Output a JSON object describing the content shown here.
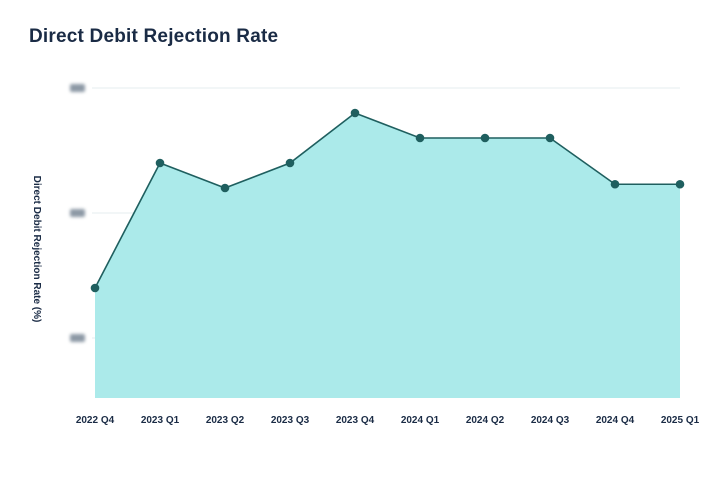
{
  "chart_data": {
    "type": "area",
    "title": "Direct Debit Rejection Rate",
    "xlabel": "",
    "ylabel": "Direct Debit  Rejection Rate (%)",
    "categories": [
      "2022 Q4",
      "2023 Q1",
      "2023 Q2",
      "2023 Q3",
      "2023 Q4",
      "2024 Q1",
      "2024 Q2",
      "2024 Q3",
      "2024 Q4",
      "2025 Q1"
    ],
    "series": [
      {
        "values": [
          1.4,
          2.4,
          2.2,
          2.4,
          2.8,
          2.6,
          2.6,
          2.6,
          2.23,
          2.23
        ]
      }
    ],
    "ylim": [
      0.5,
      3.0
    ],
    "yticks": [
      1.0,
      2.0,
      3.0
    ],
    "ytick_labels_obscured": true,
    "grid": true,
    "colors": {
      "fill": "#abeaea",
      "line": "#1f5f5f",
      "marker": "#1f5f5f",
      "grid": "#e6ecef",
      "text": "#1a2b45"
    }
  }
}
